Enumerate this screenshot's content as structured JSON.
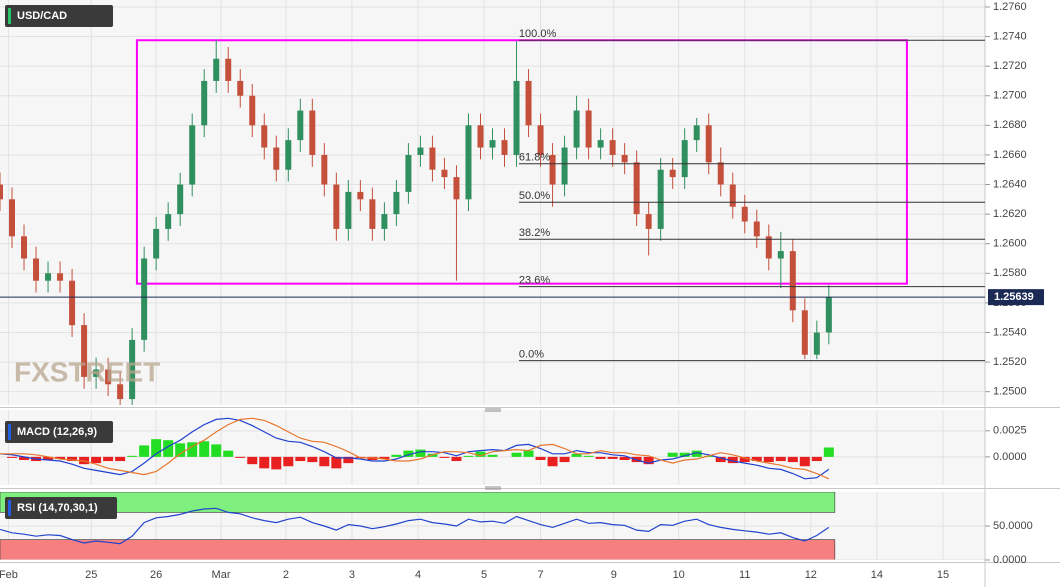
{
  "chart_data": [
    {
      "type": "candlestick",
      "title": "USD/CAD",
      "watermark": "FXSTREET",
      "xlim": [
        0,
        82
      ],
      "xticks": [
        {
          "value": 0.7,
          "label": "Feb"
        },
        {
          "value": 7.6,
          "label": "25"
        },
        {
          "value": 13,
          "label": "26"
        },
        {
          "value": 18.4,
          "label": "Mar"
        },
        {
          "value": 23.8,
          "label": "2"
        },
        {
          "value": 29.3,
          "label": "3"
        },
        {
          "value": 34.8,
          "label": "4"
        },
        {
          "value": 40.3,
          "label": "5"
        },
        {
          "value": 45,
          "label": "7"
        },
        {
          "value": 51.1,
          "label": "9"
        },
        {
          "value": 56.5,
          "label": "10"
        },
        {
          "value": 62,
          "label": "11"
        },
        {
          "value": 67.5,
          "label": "12"
        },
        {
          "value": 73,
          "label": "14"
        },
        {
          "value": 78.5,
          "label": "15"
        }
      ],
      "ylim": [
        1.2491,
        1.27647
      ],
      "yticks": [
        {
          "value": 1.25,
          "label": "1.2500"
        },
        {
          "value": 1.252,
          "label": "1.2520"
        },
        {
          "value": 1.254,
          "label": "1.2540"
        },
        {
          "value": 1.256,
          "label": "1.2560"
        },
        {
          "value": 1.258,
          "label": "1.2580"
        },
        {
          "value": 1.26,
          "label": "1.2600"
        },
        {
          "value": 1.262,
          "label": "1.2620"
        },
        {
          "value": 1.264,
          "label": "1.2640"
        },
        {
          "value": 1.266,
          "label": "1.2660"
        },
        {
          "value": 1.268,
          "label": "1.2680"
        },
        {
          "value": 1.27,
          "label": "1.2700"
        },
        {
          "value": 1.272,
          "label": "1.2720"
        },
        {
          "value": 1.274,
          "label": "1.2740"
        },
        {
          "value": 1.276,
          "label": "1.2760"
        }
      ],
      "grid": true,
      "up_color": "#2f8f5f",
      "down_color": "#c4503c",
      "open": [
        1.264,
        1.263,
        1.2605,
        1.259,
        1.2575,
        1.258,
        1.2575,
        1.2545,
        1.251,
        1.2515,
        1.2505,
        1.2495,
        1.2535,
        1.259,
        1.261,
        1.262,
        1.264,
        1.268,
        1.271,
        1.2725,
        1.271,
        1.27,
        1.268,
        1.2665,
        1.265,
        1.267,
        1.269,
        1.266,
        1.264,
        1.261,
        1.2635,
        1.263,
        1.261,
        1.262,
        1.2635,
        1.266,
        1.2665,
        1.265,
        1.2645,
        1.263,
        1.268,
        1.2665,
        1.267,
        1.266,
        1.271,
        1.268,
        1.266,
        1.264,
        1.2665,
        1.269,
        1.2665,
        1.267,
        1.266,
        1.2655,
        1.262,
        1.261,
        1.265,
        1.2645,
        1.267,
        1.268,
        1.2655,
        1.264,
        1.2625,
        1.2615,
        1.2605,
        1.259,
        1.2595,
        1.2555,
        1.2525,
        1.254
      ],
      "high": [
        1.2648,
        1.2638,
        1.2613,
        1.2598,
        1.2588,
        1.2588,
        1.2583,
        1.2553,
        1.2523,
        1.2523,
        1.2513,
        1.2543,
        1.2598,
        1.2618,
        1.2628,
        1.2648,
        1.2688,
        1.2718,
        1.2738,
        1.2733,
        1.2718,
        1.2708,
        1.2688,
        1.2673,
        1.2678,
        1.2698,
        1.2698,
        1.2668,
        1.2648,
        1.2643,
        1.2643,
        1.2638,
        1.2628,
        1.2643,
        1.2668,
        1.2673,
        1.2673,
        1.2658,
        1.2653,
        1.2688,
        1.2688,
        1.2678,
        1.2678,
        1.2737,
        1.2718,
        1.2688,
        1.2668,
        1.2673,
        1.27,
        1.2698,
        1.2678,
        1.2678,
        1.2668,
        1.2663,
        1.2628,
        1.2658,
        1.2658,
        1.2678,
        1.2685,
        1.2688,
        1.2665,
        1.2648,
        1.2633,
        1.2623,
        1.2613,
        1.2608,
        1.2603,
        1.2563,
        1.2548,
        1.2572
      ],
      "low": [
        1.2622,
        1.2597,
        1.2582,
        1.2567,
        1.2567,
        1.2567,
        1.2537,
        1.2502,
        1.2502,
        1.2497,
        1.2487,
        1.2487,
        1.2527,
        1.2582,
        1.2602,
        1.2612,
        1.2632,
        1.2672,
        1.2702,
        1.2702,
        1.2692,
        1.2672,
        1.2657,
        1.2642,
        1.2642,
        1.2662,
        1.2652,
        1.2632,
        1.2602,
        1.2602,
        1.2622,
        1.2602,
        1.2602,
        1.2612,
        1.2627,
        1.2652,
        1.2642,
        1.2637,
        1.2575,
        1.2622,
        1.2657,
        1.2657,
        1.2652,
        1.2652,
        1.2672,
        1.2652,
        1.2625,
        1.2632,
        1.2657,
        1.2657,
        1.2657,
        1.2652,
        1.2647,
        1.2612,
        1.2592,
        1.2602,
        1.2637,
        1.2637,
        1.2662,
        1.2647,
        1.2632,
        1.2617,
        1.2607,
        1.2597,
        1.2582,
        1.257,
        1.2547,
        1.2522,
        1.2522,
        1.2532
      ],
      "close": [
        1.263,
        1.2605,
        1.259,
        1.2575,
        1.258,
        1.2575,
        1.2545,
        1.251,
        1.2515,
        1.2505,
        1.2495,
        1.2535,
        1.259,
        1.261,
        1.262,
        1.264,
        1.268,
        1.271,
        1.2725,
        1.271,
        1.27,
        1.268,
        1.2665,
        1.265,
        1.267,
        1.269,
        1.266,
        1.264,
        1.261,
        1.2635,
        1.263,
        1.261,
        1.262,
        1.2635,
        1.266,
        1.2665,
        1.265,
        1.2645,
        1.263,
        1.268,
        1.2665,
        1.267,
        1.266,
        1.271,
        1.268,
        1.266,
        1.264,
        1.2665,
        1.269,
        1.2665,
        1.267,
        1.266,
        1.2655,
        1.262,
        1.261,
        1.265,
        1.2645,
        1.267,
        1.268,
        1.2655,
        1.264,
        1.2625,
        1.2615,
        1.2605,
        1.259,
        1.2595,
        1.2555,
        1.2525,
        1.254,
        1.25639
      ],
      "last_price": 1.25639,
      "box": {
        "x0": 11.4,
        "x1": 75.5,
        "y0": 1.2573,
        "y1": 1.27375,
        "color": "#ff00ff"
      },
      "fib_start": 43.2,
      "fib_levels": [
        {
          "value": 1.27375,
          "label": "100.0%"
        },
        {
          "value": 1.2654,
          "label": "61.8%"
        },
        {
          "value": 1.2628,
          "label": "50.0%"
        },
        {
          "value": 1.2603,
          "label": "38.2%"
        },
        {
          "value": 1.2571,
          "label": "23.6%"
        },
        {
          "value": 1.2521,
          "label": "0.0%"
        }
      ]
    },
    {
      "type": "macd",
      "title": "MACD (12,26,9)",
      "ylim": [
        -0.0027,
        0.0045
      ],
      "yticks": [
        {
          "value": 0.0025,
          "label": "0.0025"
        },
        {
          "value": 0,
          "label": "0.0000"
        }
      ],
      "positive_color": "#22dd22",
      "negative_color": "#e82020",
      "histogram": [
        0,
        -0.0001,
        -0.0003,
        -0.0004,
        -0.0003,
        -0.0002,
        -0.0004,
        -0.0007,
        -0.0006,
        -0.0004,
        -0.0004,
        0.0001,
        0.0011,
        0.0017,
        0.0016,
        0.0013,
        0.0014,
        0.0015,
        0.0012,
        0.0006,
        -0.0001,
        -0.0007,
        -0.0011,
        -0.0012,
        -0.0009,
        -0.0004,
        -0.0005,
        -0.0009,
        -0.0011,
        -0.0006,
        -0.0001,
        -0.0003,
        -0.0002,
        0.0002,
        0.0006,
        0.0007,
        0.0003,
        -0.0001,
        -0.0004,
        0.0001,
        0.0005,
        0.0002,
        0,
        0.0004,
        0.0006,
        -0.0003,
        -0.0009,
        -0.0005,
        0.0003,
        0.0001,
        -0.0002,
        -0.0002,
        -0.0003,
        -0.0005,
        -0.0007,
        0,
        0.0004,
        0.0004,
        0.0006,
        0.0001,
        -0.0005,
        -0.0006,
        -0.0005,
        -0.0004,
        -0.0005,
        -0.0004,
        -0.0005,
        -0.0009,
        -0.0004,
        0.0009
      ],
      "series": [
        {
          "name": "MACD",
          "color": "#1f3fd0",
          "values": [
            0.0003,
            0.0002,
            0.0,
            -0.0002,
            -0.0003,
            -0.0004,
            -0.0007,
            -0.0011,
            -0.0013,
            -0.0015,
            -0.0017,
            -0.0014,
            -0.0006,
            0.0003,
            0.001,
            0.0016,
            0.0024,
            0.0031,
            0.0036,
            0.0037,
            0.0035,
            0.003,
            0.0024,
            0.0018,
            0.0015,
            0.0014,
            0.001,
            0.0005,
            -0.0001,
            -0.0001,
            -0.0002,
            -0.0004,
            -0.0004,
            -0.0002,
            0.0002,
            0.0005,
            0.0005,
            0.0004,
            0.0001,
            0.0005,
            0.0006,
            0.0007,
            0.0006,
            0.0011,
            0.0012,
            0.0008,
            0.0003,
            0.0003,
            0.0006,
            0.0004,
            0.0004,
            0.0002,
            0.0001,
            -0.0003,
            -0.0006,
            -0.0003,
            -0.0002,
            0.0001,
            0.0004,
            0.0002,
            -0.0001,
            -0.0004,
            -0.0006,
            -0.0008,
            -0.0011,
            -0.0012,
            -0.0016,
            -0.0021,
            -0.002,
            -0.0012
          ]
        },
        {
          "name": "Signal",
          "color": "#e8772e",
          "values": [
            0.0003,
            0.0003,
            0.0003,
            0.0002,
            0.0,
            -0.0002,
            -0.0003,
            -0.0004,
            -0.0007,
            -0.0011,
            -0.0013,
            -0.0015,
            -0.0017,
            -0.0014,
            -0.0006,
            0.0003,
            0.001,
            0.0016,
            0.0024,
            0.0031,
            0.0036,
            0.0037,
            0.0035,
            0.003,
            0.0024,
            0.0018,
            0.0015,
            0.0014,
            0.001,
            0.0005,
            -0.0001,
            -0.0001,
            -0.0002,
            -0.0004,
            -0.0004,
            -0.0002,
            0.0002,
            0.0005,
            0.0005,
            0.0004,
            0.0001,
            0.0005,
            0.0006,
            0.0007,
            0.0006,
            0.0011,
            0.0012,
            0.0008,
            0.0003,
            0.0003,
            0.0006,
            0.0004,
            0.0004,
            0.0002,
            0.0001,
            -0.0003,
            -0.0006,
            -0.0003,
            -0.0002,
            0.0001,
            0.0004,
            0.0002,
            -0.0001,
            -0.0004,
            -0.0006,
            -0.0008,
            -0.0011,
            -0.0012,
            -0.0016,
            -0.0021
          ]
        }
      ]
    },
    {
      "type": "line",
      "title": "RSI (14,70,30,1)",
      "ylim": [
        0,
        100
      ],
      "yticks": [
        {
          "value": 50,
          "label": "50.0000"
        },
        {
          "value": 0,
          "label": "0.0000"
        }
      ],
      "overbought": 70,
      "oversold": 30,
      "overbought_color": "#7ff07f",
      "oversold_color": "#f67f7f",
      "color": "#2244cc",
      "values": [
        45,
        40,
        38,
        35,
        37,
        36,
        30,
        25,
        28,
        26,
        24,
        35,
        55,
        62,
        64,
        67,
        72,
        75,
        76,
        70,
        68,
        62,
        58,
        55,
        60,
        63,
        55,
        50,
        44,
        52,
        50,
        46,
        49,
        53,
        58,
        60,
        55,
        53,
        50,
        60,
        56,
        57,
        54,
        64,
        58,
        52,
        48,
        54,
        60,
        54,
        55,
        52,
        51,
        44,
        42,
        52,
        51,
        57,
        60,
        52,
        48,
        45,
        43,
        41,
        38,
        40,
        33,
        28,
        36,
        48
      ]
    }
  ]
}
